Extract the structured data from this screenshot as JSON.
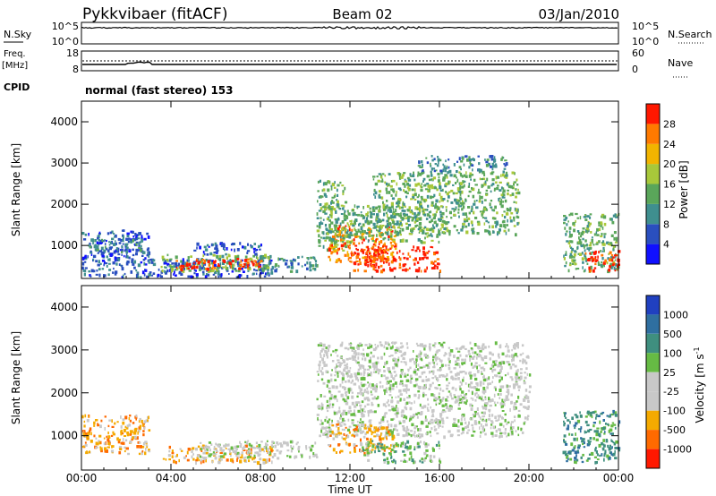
{
  "header": {
    "title": "Pykkvibaer (fitACF)",
    "beam": "Beam 02",
    "date": "03/Jan/2010"
  },
  "top_strips": {
    "nsky_label": "N.Sky",
    "nsearch_label": "N.Search",
    "noise_left_ticks": [
      "10^5",
      "10^0"
    ],
    "noise_right_ticks": [
      "10^5",
      "10^0"
    ],
    "freq_label": "Freq.",
    "freq_unit": "[MHz]",
    "freq_ticks": [
      "18",
      "8"
    ],
    "nave_label": "Nave",
    "nave_ticks": [
      "60",
      "0"
    ],
    "cpid_label": "CPID",
    "cpid_text": "normal (fast stereo) 153"
  },
  "colors": {
    "power_scale": [
      "#1010ff",
      "#2a4fbf",
      "#3f8f8f",
      "#5aa65a",
      "#a8c83a",
      "#f2b400",
      "#ff7a00",
      "#ff1800"
    ],
    "velocity_scale": [
      "#2040c0",
      "#2f6fa0",
      "#3f8f7f",
      "#66bb44",
      "#c8c8c8",
      "#c8c8c8",
      "#f5aa00",
      "#ff6a00",
      "#ff1800"
    ],
    "background": "#ffffff"
  },
  "chart_data": [
    {
      "type": "heatmap",
      "panel": "power",
      "ylabel": "Slant Range [km]",
      "yticks": [
        1000,
        2000,
        3000,
        4000
      ],
      "ylim": [
        200,
        4500
      ],
      "xlim": [
        0,
        24
      ],
      "colorbar_label": "Power [dB]",
      "colorbar_ticks": [
        "4",
        "8",
        "12",
        "16",
        "20",
        "24",
        "28"
      ],
      "echo_regions": [
        {
          "t0": 0.0,
          "t1": 3.0,
          "r0": 700,
          "r1": 1400,
          "level": 1
        },
        {
          "t0": 0.3,
          "t1": 2.8,
          "r0": 850,
          "r1": 1200,
          "level": 2
        },
        {
          "t0": 0.0,
          "t1": 8.5,
          "r0": 250,
          "r1": 700,
          "level": 1
        },
        {
          "t0": 3.5,
          "t1": 8.5,
          "r0": 400,
          "r1": 800,
          "level": 3
        },
        {
          "t0": 4.0,
          "t1": 8.0,
          "r0": 450,
          "r1": 700,
          "level": 7
        },
        {
          "t0": 5.0,
          "t1": 8.0,
          "r0": 800,
          "r1": 1100,
          "level": 1
        },
        {
          "t0": 8.0,
          "t1": 10.5,
          "r0": 400,
          "r1": 750,
          "level": 2
        },
        {
          "t0": 10.5,
          "t1": 11.8,
          "r0": 900,
          "r1": 2600,
          "level": 3
        },
        {
          "t0": 11.0,
          "t1": 14.0,
          "r0": 600,
          "r1": 1500,
          "level": 6
        },
        {
          "t0": 12.0,
          "t1": 16.0,
          "r0": 400,
          "r1": 1000,
          "level": 7
        },
        {
          "t0": 11.0,
          "t1": 16.0,
          "r0": 1100,
          "r1": 2000,
          "level": 3
        },
        {
          "t0": 13.0,
          "t1": 19.5,
          "r0": 1300,
          "r1": 2800,
          "level": 3
        },
        {
          "t0": 15.0,
          "t1": 19.0,
          "r0": 2800,
          "r1": 3200,
          "level": 2
        },
        {
          "t0": 21.5,
          "t1": 24.0,
          "r0": 400,
          "r1": 1800,
          "level": 3
        },
        {
          "t0": 22.5,
          "t1": 24.0,
          "r0": 400,
          "r1": 900,
          "level": 7
        }
      ]
    },
    {
      "type": "heatmap",
      "panel": "velocity",
      "xlabel": "Time UT",
      "ylabel": "Slant Range [km]",
      "yticks": [
        1000,
        2000,
        3000,
        4000
      ],
      "ylim": [
        200,
        4500
      ],
      "xticks": [
        "00:00",
        "04:00",
        "08:00",
        "12:00",
        "16:00",
        "20:00",
        "00:00"
      ],
      "xlim": [
        0,
        24
      ],
      "colorbar_label": "Velocity [m s",
      "colorbar_superscript": "-1",
      "colorbar_ticks": [
        "1000",
        "500",
        "100",
        "25",
        "-25",
        "-100",
        "-500",
        "-1000"
      ],
      "echo_regions": [
        {
          "t0": 0.0,
          "t1": 3.0,
          "r0": 600,
          "r1": 1500,
          "level": 6
        },
        {
          "t0": 3.5,
          "t1": 8.5,
          "r0": 400,
          "r1": 800,
          "level": 6
        },
        {
          "t0": 5.0,
          "t1": 10.5,
          "r0": 500,
          "r1": 900,
          "level": 4
        },
        {
          "t0": 10.5,
          "t1": 20.0,
          "r0": 1000,
          "r1": 3200,
          "level": 4
        },
        {
          "t0": 11.0,
          "t1": 14.0,
          "r0": 600,
          "r1": 1300,
          "level": 6
        },
        {
          "t0": 12.5,
          "t1": 16.0,
          "r0": 400,
          "r1": 900,
          "level": 3
        },
        {
          "t0": 21.5,
          "t1": 24.0,
          "r0": 400,
          "r1": 1600,
          "level": 2
        }
      ]
    }
  ]
}
